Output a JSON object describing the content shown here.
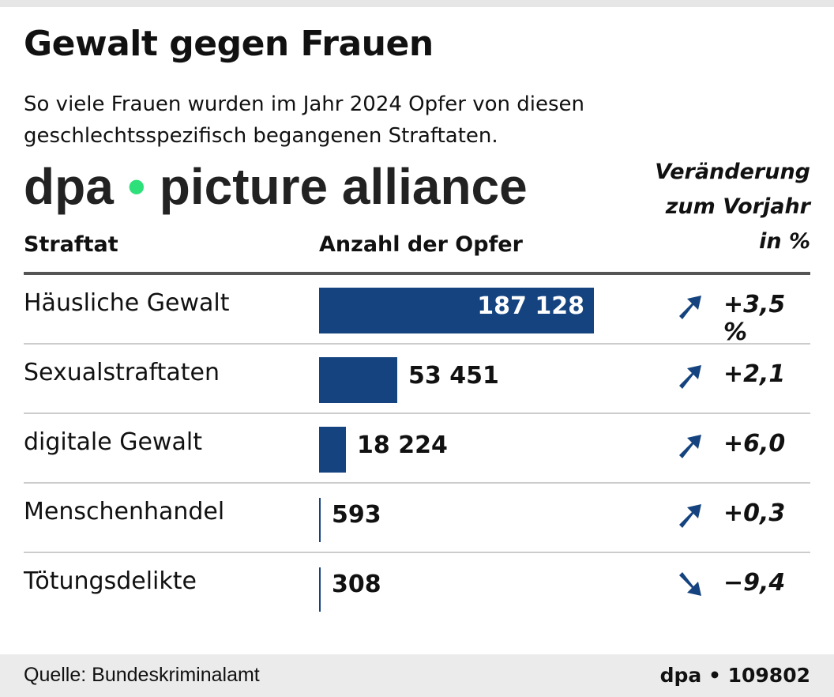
{
  "title": "Gewalt gegen Frauen",
  "subtitle": "So viele Frauen wurden im Jahr 2024 Opfer von diesen geschlechtsspezifisch begangenen Straftaten.",
  "headers": {
    "category": "Straftat",
    "count": "Anzahl der Opfer",
    "change": [
      "Veränderung",
      "zum Vorjahr",
      "in %"
    ]
  },
  "colors": {
    "bar": "#15437f",
    "arrow": "#15437f"
  },
  "chart_data": {
    "type": "bar",
    "orientation": "horizontal",
    "categories": [
      "Häusliche Gewalt",
      "Sexualstraftaten",
      "digitale Gewalt",
      "Menschenhandel",
      "Tötungsdelikte"
    ],
    "values": [
      187128,
      53451,
      18224,
      593,
      308
    ],
    "value_labels": [
      "187 128",
      "53 451",
      "18 224",
      "593",
      "308"
    ],
    "change_pct": [
      3.5,
      2.1,
      6.0,
      0.3,
      -9.4
    ],
    "change_labels": [
      "+3,5 %",
      "+2,1",
      "+6,0",
      "+0,3",
      "−9,4"
    ],
    "arrows": [
      "up",
      "up",
      "up",
      "up",
      "down"
    ]
  },
  "watermark": {
    "left": "dpa",
    "dot": "•",
    "right": "picture alliance"
  },
  "footer": {
    "source": "Quelle: Bundeskriminalamt",
    "code": "dpa • 109802"
  }
}
